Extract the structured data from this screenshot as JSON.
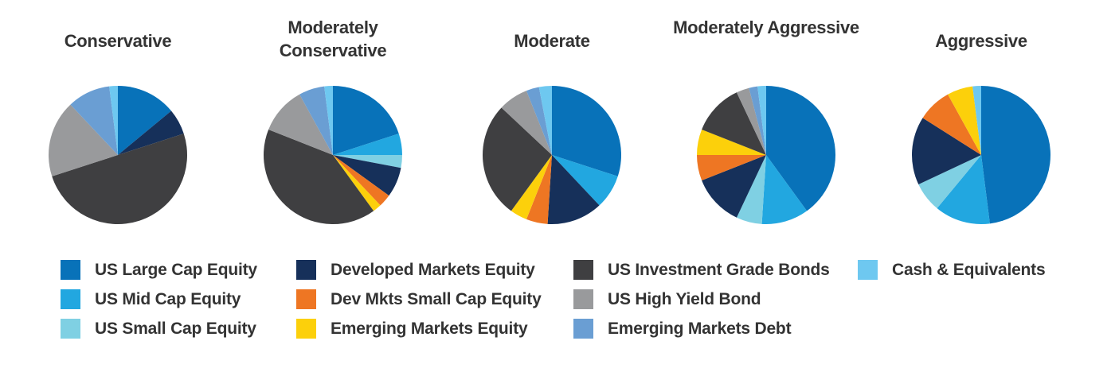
{
  "chart_data": {
    "type": "pie",
    "categories": [
      "US Large Cap Equity",
      "US Mid Cap Equity",
      "US Small Cap Equity",
      "Developed Markets Equity",
      "Dev Mkts Small Cap Equity",
      "Emerging Markets Equity",
      "US Investment Grade Bonds",
      "US High Yield Bond",
      "Emerging Markets Debt",
      "Cash & Equivalents"
    ],
    "colors": [
      "#0872b9",
      "#22a7e0",
      "#7fd0e3",
      "#16305a",
      "#ee7623",
      "#fcd00b",
      "#3f3f41",
      "#999a9c",
      "#6a9ed3",
      "#6ec8f0"
    ],
    "legend_placement": "bottom",
    "start_angle": "12 o'clock, clockwise",
    "pies": [
      {
        "title": "Conservative",
        "values": [
          14,
          0,
          0,
          6,
          0,
          0,
          50,
          18,
          10,
          2
        ]
      },
      {
        "title": "Moderately Conservative",
        "values": [
          20,
          5,
          3,
          7,
          3,
          2,
          41,
          11,
          6,
          2
        ]
      },
      {
        "title": "Moderate",
        "values": [
          30,
          8,
          0,
          13,
          5,
          4,
          27,
          7,
          3,
          3
        ]
      },
      {
        "title": "Moderately Aggressive",
        "values": [
          40,
          11,
          6,
          12,
          6,
          6,
          12,
          3,
          2,
          2
        ]
      },
      {
        "title": "Aggressive",
        "values": [
          48,
          13,
          7,
          16,
          8,
          6,
          0,
          0,
          0,
          2
        ]
      }
    ]
  }
}
